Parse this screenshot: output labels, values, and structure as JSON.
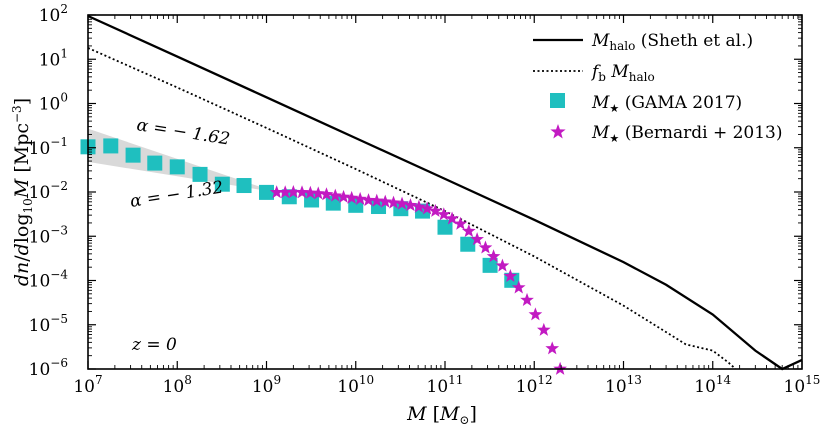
{
  "chart_data": {
    "type": "line",
    "x_scale": "log",
    "y_scale": "log",
    "xlim": [
      10000000.0,
      1000000000000000.0
    ],
    "ylim": [
      1e-06,
      100
    ],
    "x_ticks": [
      {
        "value": 10000000.0,
        "base": "10",
        "exp": "7"
      },
      {
        "value": 100000000.0,
        "base": "10",
        "exp": "8"
      },
      {
        "value": 1000000000.0,
        "base": "10",
        "exp": "9"
      },
      {
        "value": 10000000000.0,
        "base": "10",
        "exp": "10"
      },
      {
        "value": 100000000000.0,
        "base": "10",
        "exp": "11"
      },
      {
        "value": 1000000000000.0,
        "base": "10",
        "exp": "12"
      },
      {
        "value": 10000000000000.0,
        "base": "10",
        "exp": "13"
      },
      {
        "value": 100000000000000.0,
        "base": "10",
        "exp": "14"
      },
      {
        "value": 1000000000000000.0,
        "base": "10",
        "exp": "15"
      }
    ],
    "y_ticks": [
      {
        "value": 100,
        "base": "10",
        "exp": "2"
      },
      {
        "value": 10,
        "base": "10",
        "exp": "1"
      },
      {
        "value": 1,
        "base": "10",
        "exp": "0"
      },
      {
        "value": 0.1,
        "base": "10",
        "exp": "−1"
      },
      {
        "value": 0.01,
        "base": "10",
        "exp": "−2"
      },
      {
        "value": 0.001,
        "base": "10",
        "exp": "−3"
      },
      {
        "value": 0.0001,
        "base": "10",
        "exp": "−4"
      },
      {
        "value": 1e-05,
        "base": "10",
        "exp": "−5"
      },
      {
        "value": 1e-06,
        "base": "10",
        "exp": "−6"
      }
    ],
    "xlabel": "M [M⊙]",
    "ylabel": "dn/dlog₁₀M [Mpc⁻³]",
    "legend_position": "top-right",
    "series": [
      {
        "name": "M_halo (Sheth et al.)",
        "legend_main": "M",
        "legend_sub": "halo",
        "legend_rest": " (Sheth et al.)",
        "style": "solid",
        "color": "#000000",
        "x": [
          10000000.0,
          100000000.0,
          1000000000.0,
          10000000000.0,
          100000000000.0,
          1000000000000.0,
          10000000000000.0,
          30000000000000.0,
          100000000000000.0,
          300000000000000.0,
          600000000000000.0,
          1000000000000000.0
        ],
        "y": [
          95,
          11.5,
          1.38,
          0.165,
          0.0198,
          0.00235,
          0.00026,
          8e-05,
          1.7e-05,
          2.6e-06,
          5.5e-07,
          1.6e-06
        ]
      },
      {
        "name": "f_b M_halo",
        "legend_main": "f",
        "legend_sub": "b",
        "legend_rest2": " M",
        "legend_sub2": "halo",
        "style": "dotted",
        "color": "#000000",
        "x": [
          10000000.0,
          100000000.0,
          1000000000.0,
          10000000000.0,
          100000000000.0,
          1000000000000.0,
          10000000000000.0,
          50000000000000.0,
          100000000000000.0,
          150000000000000.0,
          180000000000000.0
        ],
        "y": [
          18,
          2.3,
          0.28,
          0.033,
          0.0037,
          0.00035,
          2.7e-05,
          3.6e-06,
          2.6e-06,
          1.4e-06,
          1e-06
        ]
      },
      {
        "name": "M★ (GAMA 2017)",
        "legend_main": "M",
        "legend_sub": "★",
        "legend_rest": " (GAMA 2017)",
        "marker": "square",
        "color": "#1fbfbf",
        "x": [
          10000000.0,
          18000000.0,
          32000000.0,
          56000000.0,
          100000000.0,
          180000000.0,
          320000000.0,
          560000000.0,
          1000000000.0,
          1800000000.0,
          3200000000.0,
          5600000000.0,
          10000000000.0,
          18000000000.0,
          32000000000.0,
          56000000000.0,
          100000000000.0,
          180000000000.0,
          320000000000.0,
          560000000000.0
        ],
        "y": [
          0.105,
          0.11,
          0.068,
          0.045,
          0.037,
          0.025,
          0.015,
          0.014,
          0.0098,
          0.0078,
          0.0066,
          0.0056,
          0.005,
          0.0047,
          0.0042,
          0.0037,
          0.0016,
          0.00066,
          0.00022,
          0.000101
        ]
      },
      {
        "name": "M★ (Bernardi+2013)",
        "legend_main": "M",
        "legend_sub": "★",
        "legend_rest": " (Bernardi + 2013)",
        "marker": "star",
        "color": "#c21ac2",
        "x": [
          1300000000.0,
          1620000000.0,
          2000000000.0,
          2500000000.0,
          3100000000.0,
          3800000000.0,
          4700000000.0,
          5900000000.0,
          7300000000.0,
          9000000000.0,
          11200000000.0,
          13900000000.0,
          17200000000.0,
          21400000000.0,
          26500000000.0,
          33000000000.0,
          41000000000.0,
          51000000000.0,
          63000000000.0,
          78000000000.0,
          97000000000.0,
          120000000000.0,
          149000000000.0,
          185000000000.0,
          229000000000.0,
          284000000000.0,
          350000000000.0,
          440000000000.0,
          540000000000.0,
          670000000000.0,
          830000000000.0,
          1030000000000.0,
          1280000000000.0,
          1590000000000.0,
          1950000000000.0
        ],
        "y": [
          0.0098,
          0.0098,
          0.0099,
          0.0098,
          0.0095,
          0.0092,
          0.0088,
          0.0082,
          0.0077,
          0.0073,
          0.0069,
          0.0065,
          0.0063,
          0.006,
          0.0057,
          0.0054,
          0.005,
          0.0046,
          0.0042,
          0.0037,
          0.0031,
          0.0025,
          0.0019,
          0.0013,
          0.00085,
          0.00055,
          0.00035,
          0.000215,
          0.000125,
          6.9e-05,
          3.6e-05,
          1.7e-05,
          7.6e-06,
          2.9e-06,
          1e-06
        ]
      }
    ],
    "band": {
      "x": [
        10000000.0,
        1300000000.0
      ],
      "upper": [
        0.27,
        0.0098
      ],
      "lower": [
        0.048,
        0.0098
      ],
      "color": "#d9d9d9"
    },
    "annotations": [
      {
        "id": "alpha-upper",
        "prefix": "α = − ",
        "value": "1.62"
      },
      {
        "id": "alpha-lower",
        "prefix": "α = − ",
        "value": "1.32"
      },
      {
        "id": "redshift",
        "text": "z = 0"
      }
    ]
  }
}
